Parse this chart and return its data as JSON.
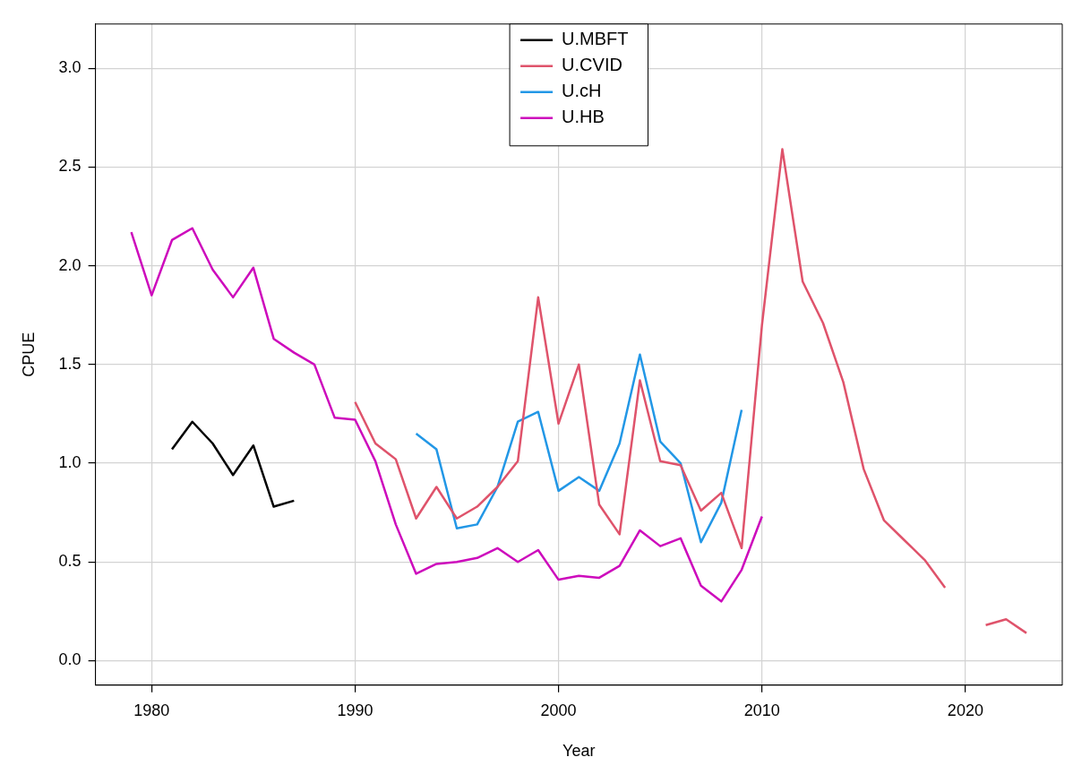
{
  "chart_data": {
    "type": "line",
    "xlabel": "Year",
    "ylabel": "CPUE",
    "xlim": [
      1977.24,
      2024.76
    ],
    "xticks": [
      1980,
      1990,
      2000,
      2010,
      2020
    ],
    "ylim": [
      -0.124,
      3.224
    ],
    "yticks": [
      {
        "value": 0,
        "label": "0.0"
      },
      {
        "value": 0.5,
        "label": "0.5"
      },
      {
        "value": 1,
        "label": "1.0"
      },
      {
        "value": 1.5,
        "label": "1.5"
      },
      {
        "value": 2,
        "label": "2.0"
      },
      {
        "value": 2.5,
        "label": "2.5"
      },
      {
        "value": 3,
        "label": "3.0"
      }
    ],
    "grid": true,
    "legend": "top",
    "line_style": "solid",
    "marker": "none",
    "series": [
      {
        "name": "U.MBFT",
        "color": "#000000",
        "x": [
          1981,
          1982,
          1983,
          1984,
          1985,
          1986,
          1987
        ],
        "values": [
          1.07,
          1.21,
          1.1,
          0.94,
          1.09,
          0.78,
          0.81
        ]
      },
      {
        "name": "U.CVID",
        "color": "#df536b",
        "x": [
          1990,
          1991,
          1992,
          1993,
          1994,
          1995,
          1996,
          1997,
          1998,
          1999,
          2000,
          2001,
          2002,
          2003,
          2004,
          2005,
          2006,
          2007,
          2008,
          2009,
          2010,
          2011,
          2012,
          2013,
          2014,
          2015,
          2016,
          2017,
          2018,
          2019,
          2020,
          2021,
          2022,
          2023
        ],
        "values": [
          1.31,
          1.1,
          1.02,
          0.72,
          0.88,
          0.72,
          0.78,
          0.88,
          1.01,
          1.84,
          1.2,
          1.5,
          0.79,
          0.64,
          1.42,
          1.01,
          0.99,
          0.76,
          0.85,
          0.57,
          1.7,
          2.59,
          1.92,
          1.71,
          1.41,
          0.97,
          0.71,
          0.61,
          0.51,
          0.37,
          null,
          0.18,
          0.21,
          0.14
        ]
      },
      {
        "name": "U.cH",
        "color": "#2297e6",
        "x": [
          1993,
          1994,
          1995,
          1996,
          1997,
          1998,
          1999,
          2000,
          2001,
          2002,
          2003,
          2004,
          2005,
          2006,
          2007,
          2008,
          2009
        ],
        "values": [
          1.15,
          1.07,
          0.67,
          0.69,
          0.88,
          1.21,
          1.26,
          0.86,
          0.93,
          0.86,
          1.1,
          1.55,
          1.11,
          1.0,
          0.6,
          0.8,
          1.27
        ]
      },
      {
        "name": "U.HB",
        "color": "#cd0bbc",
        "x": [
          1979,
          1980,
          1981,
          1982,
          1983,
          1984,
          1985,
          1986,
          1987,
          1988,
          1989,
          1990,
          1991,
          1992,
          1993,
          1994,
          1995,
          1996,
          1997,
          1998,
          1999,
          2000,
          2001,
          2002,
          2003,
          2004,
          2005,
          2006,
          2007,
          2008,
          2009,
          2010
        ],
        "values": [
          2.17,
          1.85,
          2.13,
          2.19,
          1.98,
          1.84,
          1.99,
          1.63,
          1.56,
          1.5,
          1.23,
          1.22,
          1.01,
          0.69,
          0.44,
          0.49,
          0.5,
          0.52,
          0.57,
          0.5,
          0.56,
          0.41,
          0.43,
          0.42,
          0.48,
          0.66,
          0.58,
          0.62,
          0.38,
          0.3,
          0.46,
          0.73
        ]
      }
    ]
  }
}
